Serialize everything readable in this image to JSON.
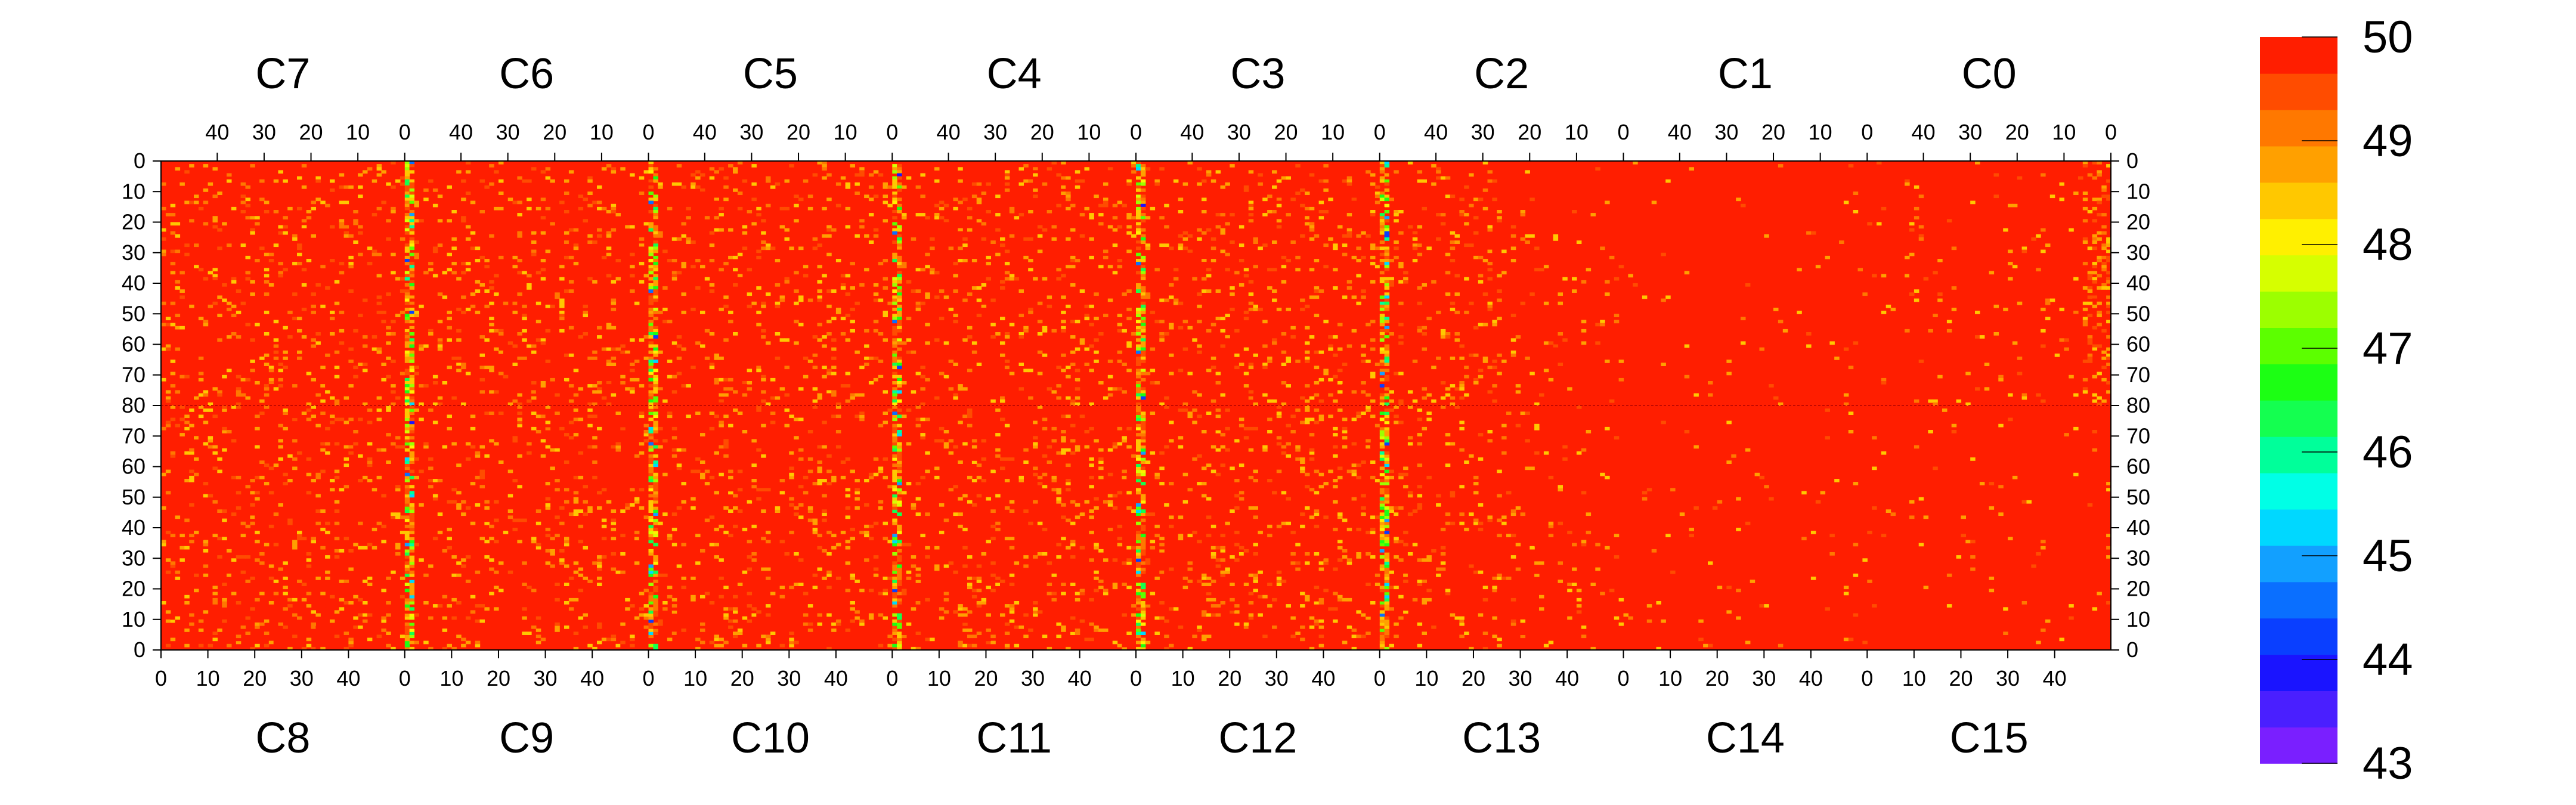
{
  "chart_data": {
    "type": "heatmap",
    "top_chip_labels": [
      "C7",
      "C6",
      "C5",
      "C4",
      "C3",
      "C2",
      "C1",
      "C0"
    ],
    "bottom_chip_labels": [
      "C8",
      "C9",
      "C10",
      "C11",
      "C12",
      "C13",
      "C14",
      "C15"
    ],
    "columns_per_chip": 52,
    "rows_per_half": 80,
    "top_x_tick_labels": [
      "40",
      "30",
      "20",
      "10",
      "0"
    ],
    "bottom_x_tick_labels": [
      "0",
      "10",
      "20",
      "30",
      "40"
    ],
    "top_x_tick_values": [
      40,
      30,
      20,
      10,
      0
    ],
    "bottom_x_tick_values": [
      0,
      10,
      20,
      30,
      40
    ],
    "y_tick_labels": [
      "0",
      "10",
      "20",
      "30",
      "40",
      "50",
      "60",
      "70",
      "80",
      "70",
      "60",
      "50",
      "40",
      "30",
      "20",
      "10",
      "0"
    ],
    "colorbar": {
      "min": 43,
      "max": 50,
      "tick_labels": [
        "50",
        "49",
        "48",
        "47",
        "46",
        "45",
        "44",
        "43"
      ],
      "colors": [
        "#7a1fff",
        "#4a1fff",
        "#1a14ff",
        "#0a3fff",
        "#0a6fff",
        "#12a0ff",
        "#00d8ff",
        "#00ffe6",
        "#00ff9a",
        "#14ff50",
        "#1cff14",
        "#5cff00",
        "#9cff00",
        "#d6ff00",
        "#fff000",
        "#ffc800",
        "#ffa000",
        "#ff7800",
        "#ff4c00",
        "#ff1e00"
      ]
    },
    "baseline_value": 50,
    "notable_columns": "strong low-value stripes at column 0 of chips C7/C8, C5/C10, C4/C11, C3/C12; chips C13, C14 mostly uniform at 50"
  }
}
